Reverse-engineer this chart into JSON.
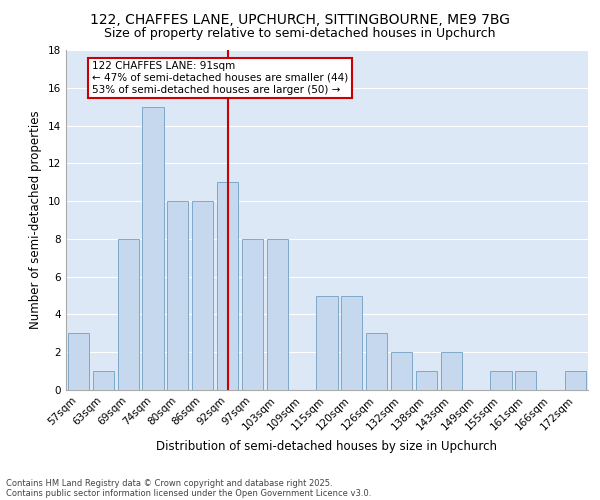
{
  "title1": "122, CHAFFES LANE, UPCHURCH, SITTINGBOURNE, ME9 7BG",
  "title2": "Size of property relative to semi-detached houses in Upchurch",
  "xlabel": "Distribution of semi-detached houses by size in Upchurch",
  "ylabel": "Number of semi-detached properties",
  "categories": [
    "57sqm",
    "63sqm",
    "69sqm",
    "74sqm",
    "80sqm",
    "86sqm",
    "92sqm",
    "97sqm",
    "103sqm",
    "109sqm",
    "115sqm",
    "120sqm",
    "126sqm",
    "132sqm",
    "138sqm",
    "143sqm",
    "149sqm",
    "155sqm",
    "161sqm",
    "166sqm",
    "172sqm"
  ],
  "values": [
    3,
    1,
    8,
    15,
    10,
    10,
    11,
    8,
    8,
    0,
    5,
    5,
    3,
    2,
    1,
    2,
    0,
    1,
    1,
    0,
    1
  ],
  "bar_color": "#c5d8ed",
  "bar_edge_color": "#7fa8c9",
  "marker_index": 6,
  "vline_color": "#cc0000",
  "annotation_title": "122 CHAFFES LANE: 91sqm",
  "annotation_line1": "← 47% of semi-detached houses are smaller (44)",
  "annotation_line2": "53% of semi-detached houses are larger (50) →",
  "annotation_box_color": "#ffffff",
  "annotation_box_edge": "#cc0000",
  "ylim": [
    0,
    18
  ],
  "yticks": [
    0,
    2,
    4,
    6,
    8,
    10,
    12,
    14,
    16,
    18
  ],
  "bg_color": "#dce8f5",
  "footnote1": "Contains HM Land Registry data © Crown copyright and database right 2025.",
  "footnote2": "Contains public sector information licensed under the Open Government Licence v3.0.",
  "title_fontsize": 10,
  "subtitle_fontsize": 9,
  "axis_label_fontsize": 8.5,
  "tick_fontsize": 7.5,
  "annotation_fontsize": 7.5
}
